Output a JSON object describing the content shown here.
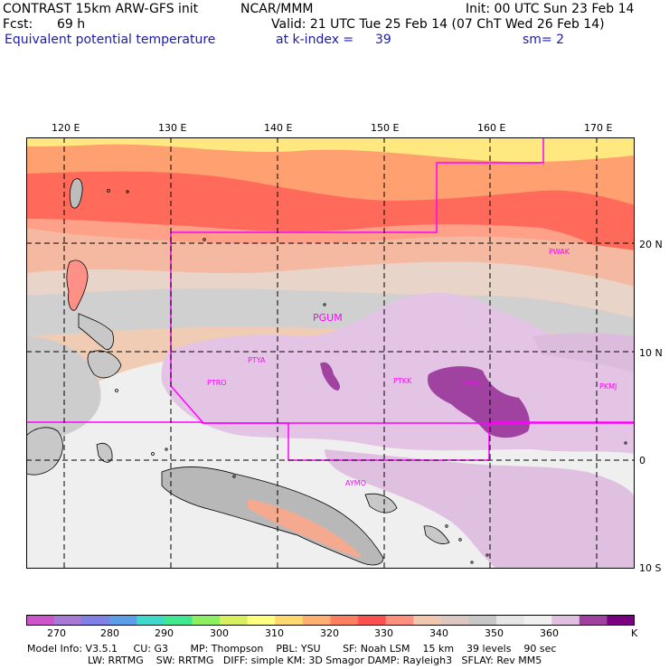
{
  "header": {
    "line1_left": "CONTRAST 15km ARW-GFS init",
    "line1_center": "NCAR/MMM",
    "line1_right": "Init: 00 UTC Sun 23 Feb 14",
    "fcst_label": "Fcst:",
    "fcst_value": "69 h",
    "valid": "Valid: 21 UTC Tue 25 Feb 14 (07 ChT Wed 26 Feb 14)",
    "field": "Equivalent potential temperature",
    "level": "at k-index =",
    "level_value": "39",
    "smooth": "sm= 2"
  },
  "map": {
    "lon_ticks": [
      "120 E",
      "130 E",
      "140 E",
      "150 E",
      "160 E",
      "170 E"
    ],
    "lat_ticks": [
      "20 N",
      "10 N",
      "0",
      "10 S"
    ],
    "stations": [
      "PWAK",
      "PGUM",
      "PTYA",
      "PTRO",
      "PTKK",
      "PTPN",
      "PKMJ",
      "AYMO"
    ],
    "colors": {
      "domain_box": "#ff00ff",
      "station_text": "#ff00ff"
    }
  },
  "colorbar": {
    "labels": [
      "270",
      "280",
      "290",
      "300",
      "310",
      "320",
      "330",
      "340",
      "350",
      "360"
    ],
    "unit": "K",
    "colors": [
      "#cc55cc",
      "#a87ad6",
      "#8080e6",
      "#5a9fe8",
      "#40d8c8",
      "#40e890",
      "#8ef060",
      "#d8f060",
      "#ffff80",
      "#ffd870",
      "#ffb070",
      "#ff8060",
      "#ff5050",
      "#ff9080",
      "#f0c8b0",
      "#dcc8c0",
      "#c8c8c8",
      "#e6e6e6",
      "#f0f0f0",
      "#e0c0e0",
      "#a040a0",
      "#7a0080"
    ]
  },
  "footer": {
    "line1": "Model Info: V3.5.1     CU: G3       MP: Thompson    PBL: YSU       SF: Noah LSM    15 km    39 levels    90 sec",
    "line2": "LW: RRTMG    SW: RRTMG   DIFF: simple KM: 3D Smagor DAMP: Rayleigh3   SFLAY: Rev MM5"
  }
}
